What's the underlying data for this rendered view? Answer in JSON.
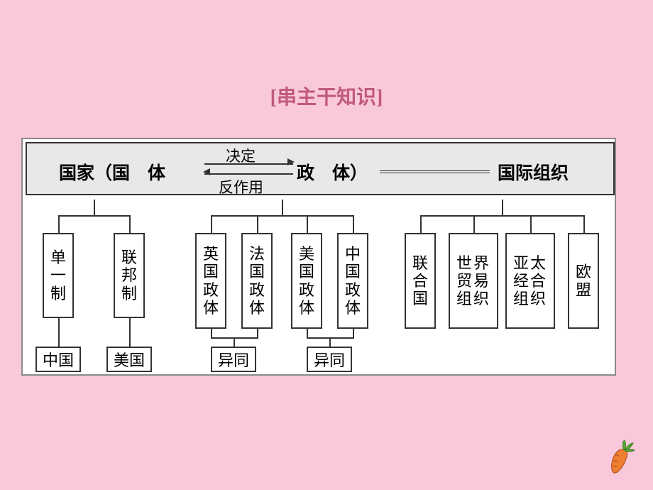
{
  "title": "[串主干知识]",
  "background_color": "#fac8db",
  "diagram_bg": "#ffffff",
  "header_bg": "#e8e8e8",
  "border_color": "#333333",
  "header": {
    "left": "国家（国　体",
    "mid": "政　体）",
    "right": "国际组织",
    "rel_top": "决定",
    "rel_bottom": "反作用"
  },
  "level2": {
    "g1": [
      "单一制",
      "联邦制"
    ],
    "g2": [
      "英国政体",
      "法国政体",
      "美国政体",
      "中国政体"
    ],
    "g3": [
      "联合国",
      "世界贸易组织",
      "亚太经合组织",
      "欧盟"
    ]
  },
  "level3": {
    "g1": [
      "中国",
      "美国"
    ],
    "g2": [
      "异同",
      "异同"
    ]
  }
}
